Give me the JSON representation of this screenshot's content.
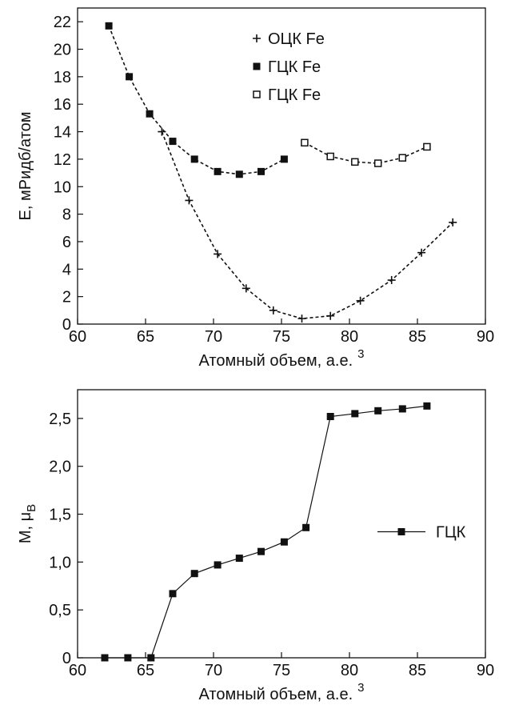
{
  "chart_data": [
    {
      "type": "line",
      "x_label": "Атомный объем, а.е.",
      "x_label_sup": "3",
      "y_label": "E, мРидб/атом",
      "xlim": [
        60,
        90
      ],
      "xticks": [
        60,
        65,
        70,
        75,
        80,
        85,
        90
      ],
      "ylim": [
        0,
        23
      ],
      "yticks": [
        0,
        2,
        4,
        6,
        8,
        10,
        12,
        14,
        16,
        18,
        20,
        22
      ],
      "legend_loc": "upper center",
      "series": [
        {
          "name": "ОЦК Fe",
          "color": "#111111",
          "marker": "plus",
          "linestyle": "dashed",
          "x": [
            66.2,
            68.2,
            70.3,
            72.4,
            74.4,
            76.5,
            78.6,
            80.8,
            83.1,
            85.3,
            87.6
          ],
          "values": [
            14.0,
            9.0,
            5.1,
            2.6,
            1.0,
            0.4,
            0.6,
            1.7,
            3.2,
            5.2,
            7.4
          ]
        },
        {
          "name": "ГЦК Fe",
          "color": "#111111",
          "marker": "square",
          "linestyle": "dashed",
          "x": [
            62.3,
            63.8,
            65.3,
            67.0,
            68.6,
            70.3,
            71.9,
            73.5,
            75.2
          ],
          "values": [
            21.7,
            18.0,
            15.3,
            13.3,
            12.0,
            11.1,
            10.9,
            11.1,
            12.0
          ]
        },
        {
          "name": "ГЦК Fe",
          "color": "#111111",
          "marker": "open-square",
          "linestyle": "dashed",
          "x": [
            76.7,
            78.6,
            80.4,
            82.1,
            83.9,
            85.7
          ],
          "values": [
            13.2,
            12.2,
            11.8,
            11.7,
            12.1,
            12.9
          ]
        }
      ]
    },
    {
      "type": "line",
      "x_label": "Атомный объем, а.е.",
      "x_label_sup": "3",
      "y_label": "M, μ",
      "y_label_sub": "B",
      "xlim": [
        60,
        90
      ],
      "xticks": [
        60,
        65,
        70,
        75,
        80,
        85,
        90
      ],
      "ylim": [
        0,
        2.8
      ],
      "yticks": [
        0,
        {
          "value": 0.5,
          "label": "0,5"
        },
        {
          "value": 1.0,
          "label": "1,0"
        },
        {
          "value": 1.5,
          "label": "1,5"
        },
        {
          "value": 2.0,
          "label": "2,0"
        },
        {
          "value": 2.5,
          "label": "2,5"
        }
      ],
      "legend_loc": "center right",
      "series": [
        {
          "name": "ГЦК",
          "color": "#111111",
          "marker": "square",
          "linestyle": "solid",
          "x": [
            62.0,
            63.7,
            65.4,
            67.0,
            68.6,
            70.3,
            71.9,
            73.5,
            75.2,
            76.8,
            78.6,
            80.4,
            82.1,
            83.9,
            85.7
          ],
          "values": [
            0,
            0,
            0,
            0.67,
            0.88,
            0.97,
            1.04,
            1.11,
            1.21,
            1.36,
            2.52,
            2.55,
            2.58,
            2.6,
            2.63
          ]
        }
      ]
    }
  ]
}
